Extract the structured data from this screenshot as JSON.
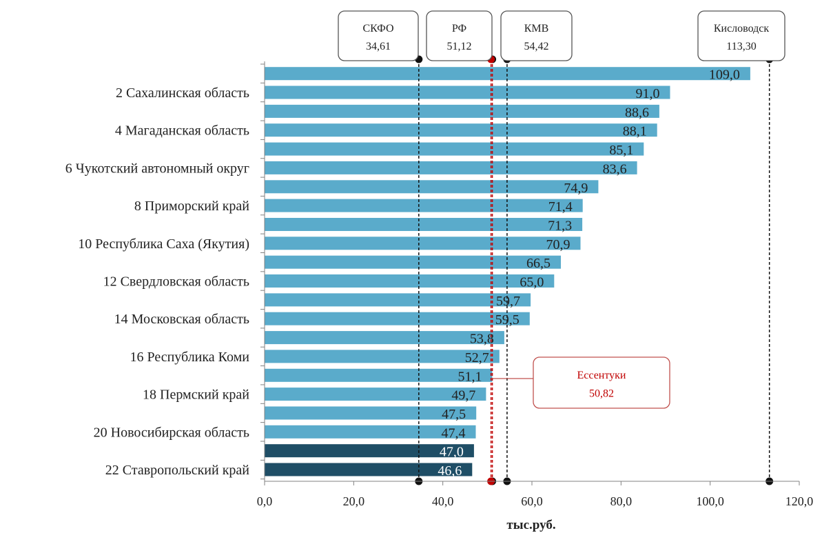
{
  "chart_data": {
    "type": "bar",
    "orientation": "horizontal",
    "title": "",
    "xlabel": "тыс.руб.",
    "ylabel": "",
    "xlim": [
      0,
      120
    ],
    "xticks": [
      "0,0",
      "20,0",
      "40,0",
      "60,0",
      "80,0",
      "100,0",
      "120,0"
    ],
    "grid": false,
    "categories": [
      "",
      "2 Сахалинская область",
      "",
      "4 Магаданская область",
      "",
      "6 Чукотский автономный округ",
      "",
      "8 Приморский край",
      "",
      "10 Республика Саха (Якутия)",
      "",
      "12 Свердловская область",
      "",
      "14 Московская область",
      "",
      "16 Республика Коми",
      "",
      "18 Пермский край",
      "",
      "20 Новосибирская область",
      "",
      "22 Ставропольский край"
    ],
    "values": [
      109.0,
      91.0,
      88.6,
      88.1,
      85.1,
      83.6,
      74.9,
      71.4,
      71.3,
      70.9,
      66.5,
      65.0,
      59.7,
      59.5,
      53.8,
      52.7,
      51.1,
      49.7,
      47.5,
      47.4,
      47.0,
      46.6
    ],
    "value_labels": [
      "109,0",
      "91,0",
      "88,6",
      "88,1",
      "85,1",
      "83,6",
      "74,9",
      "71,4",
      "71,3",
      "70,9",
      "66,5",
      "65,0",
      "59,7",
      "59,5",
      "53,8",
      "52,7",
      "51,1",
      "49,7",
      "47,5",
      "47,4",
      "47,0",
      "46,6"
    ],
    "highlighted_indices": [
      20,
      21
    ],
    "reference_lines": [
      {
        "name": "СКФО",
        "label": "34,61",
        "value": 34.61
      },
      {
        "name": "РФ",
        "label": "51,12",
        "value": 51.12
      },
      {
        "name": "КМВ",
        "label": "54,42",
        "value": 54.42
      },
      {
        "name": "Кисловодск",
        "label": "113,30",
        "value": 113.3
      },
      {
        "name": "Ессентуки",
        "label": "50,82",
        "value": 50.82
      }
    ],
    "colors": {
      "bar": "#5aabcb",
      "bar_highlight": "#1f4e66",
      "ref_line": "#111111",
      "ref_highlight": "#c00000",
      "box_border": "#555555",
      "box_highlight_border": "#c0504d",
      "box_highlight_text": "#c00000"
    }
  }
}
